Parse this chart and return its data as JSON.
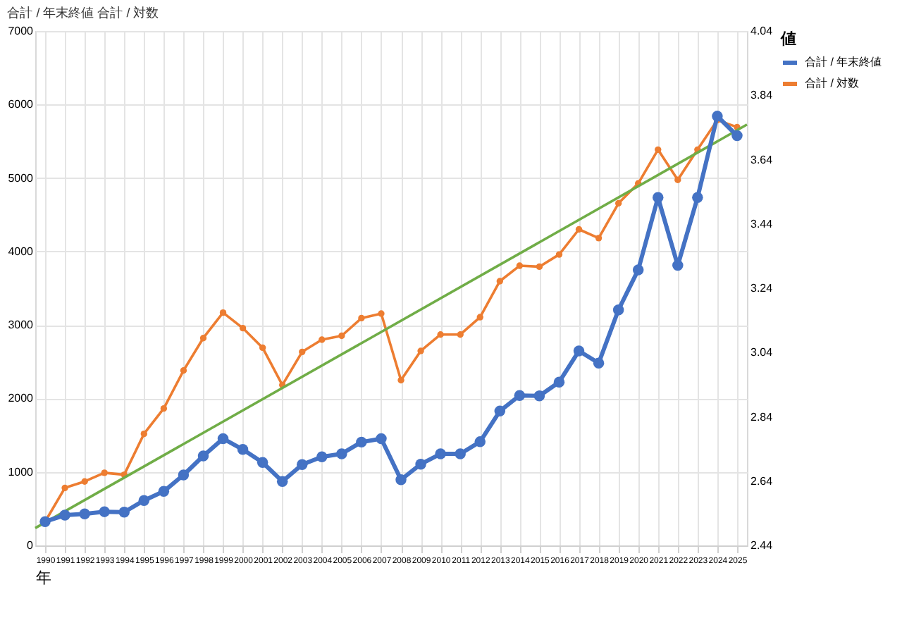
{
  "chart_data": {
    "type": "line",
    "annotations": [
      "合計 / 年末終値 合計 / 対数"
    ],
    "xlabel": "年",
    "legend_title": "値",
    "legend": "right",
    "grid": true,
    "marker": "circle",
    "x": [
      1990,
      1991,
      1992,
      1993,
      1994,
      1995,
      1996,
      1997,
      1998,
      1999,
      2000,
      2001,
      2002,
      2003,
      2004,
      2005,
      2006,
      2007,
      2008,
      2009,
      2010,
      2011,
      2012,
      2013,
      2014,
      2015,
      2016,
      2017,
      2018,
      2019,
      2020,
      2021,
      2022,
      2023,
      2024,
      2025
    ],
    "xlim": [
      1989.5,
      2025.5
    ],
    "xticks": [
      1990,
      1991,
      1992,
      1993,
      1994,
      1995,
      1996,
      1997,
      1998,
      1999,
      2000,
      2001,
      2002,
      2003,
      2004,
      2005,
      2006,
      2007,
      2008,
      2009,
      2010,
      2011,
      2012,
      2013,
      2014,
      2015,
      2016,
      2017,
      2018,
      2019,
      2020,
      2021,
      2022,
      2023,
      2024,
      2025
    ],
    "ylim": [
      0,
      7000
    ],
    "yticks": [
      0,
      1000,
      2000,
      3000,
      4000,
      5000,
      6000,
      7000
    ],
    "y2lim": [
      2.44,
      4.04
    ],
    "y2ticks": [
      {
        "value": 2.44,
        "label": "2.44"
      },
      {
        "value": 2.64,
        "label": "2.64"
      },
      {
        "value": 2.84,
        "label": "2.84"
      },
      {
        "value": 3.04,
        "label": "3.04"
      },
      {
        "value": 3.24,
        "label": "3.24"
      },
      {
        "value": 3.44,
        "label": "3.44"
      },
      {
        "value": 3.64,
        "label": "3.64"
      },
      {
        "value": 3.84,
        "label": "3.84"
      },
      {
        "value": 4.04,
        "label": "4.04"
      }
    ],
    "series": [
      {
        "name": "合計 / 年末終値",
        "color": "#4472c4",
        "values": [
          324,
          412,
          430,
          459,
          453,
          612,
          735,
          959,
          1218,
          1453,
          1306,
          1129,
          871,
          1100,
          1206,
          1247,
          1406,
          1453,
          894,
          1106,
          1246,
          1246,
          1411,
          1828,
          2040,
          2035,
          2223,
          2647,
          2482,
          3205,
          3750,
          4734,
          3811,
          4734,
          5841,
          5576
        ]
      },
      {
        "name": "合計 / 対数",
        "color": "#ed7d31",
        "axis": "y2",
        "values": [
          2.514,
          2.619,
          2.639,
          2.666,
          2.66,
          2.787,
          2.866,
          2.984,
          3.085,
          3.164,
          3.116,
          3.055,
          2.939,
          3.042,
          3.08,
          3.092,
          3.147,
          3.161,
          2.954,
          3.045,
          3.096,
          3.096,
          3.15,
          3.262,
          3.31,
          3.307,
          3.345,
          3.423,
          3.396,
          3.504,
          3.566,
          3.671,
          3.577,
          3.671,
          3.763,
          3.741
        ]
      },
      {
        "color": "#70ad47",
        "axis": "y2",
        "marker": "none",
        "x": [
          1989.5,
          2025.5
        ],
        "values": [
          2.494,
          3.749
        ]
      }
    ]
  }
}
